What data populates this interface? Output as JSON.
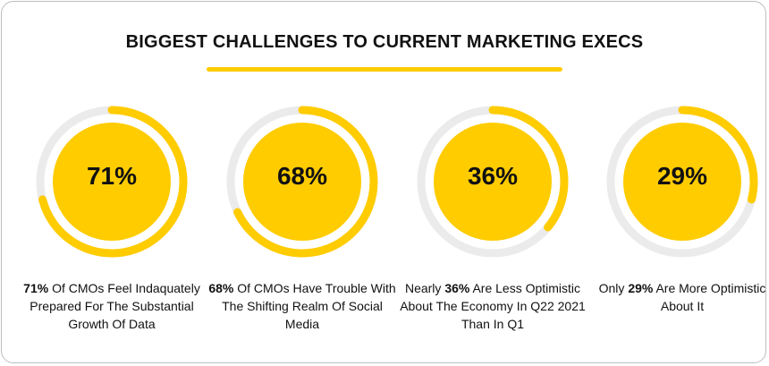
{
  "title": "BIGGEST CHALLENGES TO CURRENT MARKETING EXECS",
  "colors": {
    "accent": "#FFCC00",
    "track": "#EBEBEB"
  },
  "chart_data": {
    "type": "donut",
    "items": [
      {
        "value": 71,
        "label": "71%",
        "desc_pre": "",
        "desc_bold": "71%",
        "desc_post": " Of CMOs Feel Indaquately Prepared For The Substantial Growth Of Data"
      },
      {
        "value": 68,
        "label": "68%",
        "desc_pre": "",
        "desc_bold": "68%",
        "desc_post": " Of CMOs Have Trouble With The Shifting Realm Of Social Media"
      },
      {
        "value": 36,
        "label": "36%",
        "desc_pre": "Nearly ",
        "desc_bold": "36%",
        "desc_post": " Are Less Optimistic About The Economy In Q22 2021 Than In Q1"
      },
      {
        "value": 29,
        "label": "29%",
        "desc_pre": "Only ",
        "desc_bold": "29%",
        "desc_post": " Are More Optimistic About It"
      }
    ]
  }
}
